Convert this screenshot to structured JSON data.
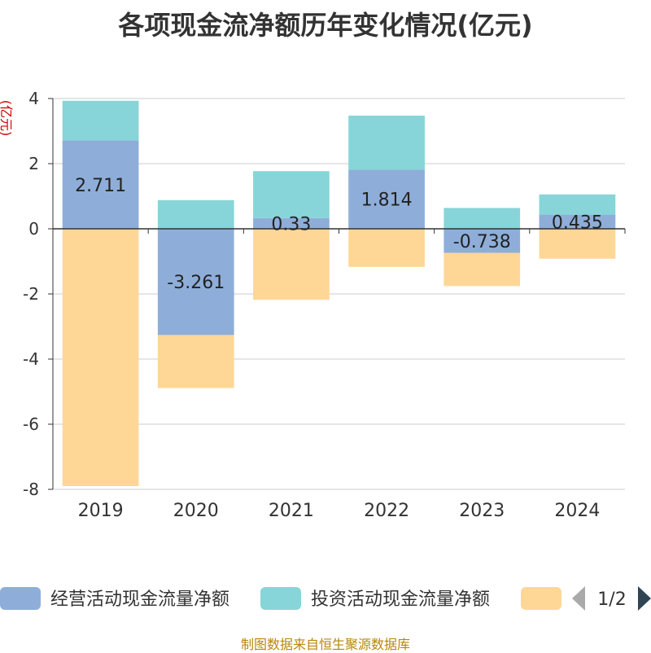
{
  "chart_data": {
    "type": "bar",
    "stacked": true,
    "title": "各项现金流净额历年变化情况(亿元)",
    "ylabel": "(亿元)",
    "xlabel": "",
    "ylim": [
      -8,
      4
    ],
    "yticks": [
      4,
      2,
      0,
      -2,
      -4,
      -6,
      -8
    ],
    "categories": [
      "2019",
      "2020",
      "2021",
      "2022",
      "2023",
      "2024"
    ],
    "series": [
      {
        "name": "经营活动现金流量净额",
        "color": "#8eaed9",
        "values": [
          2.711,
          -3.261,
          0.33,
          1.814,
          -0.738,
          0.435
        ],
        "labels": [
          "2.711",
          "-3.261",
          "0.33",
          "1.814",
          "-0.738",
          "0.435"
        ]
      },
      {
        "name": "投资活动现金流量净额",
        "color": "#87d5d8",
        "values": [
          1.22,
          0.88,
          1.44,
          1.66,
          0.64,
          0.62
        ]
      },
      {
        "name": "",
        "color": "#fed797",
        "values": [
          -7.9,
          -1.63,
          -2.18,
          -1.17,
          -1.02,
          -0.92
        ]
      }
    ],
    "legend": {
      "items": [
        "经营活动现金流量净额",
        "投资活动现金流量净额"
      ],
      "page": "1/2"
    },
    "source": "制图数据来自恒生聚源数据库"
  }
}
